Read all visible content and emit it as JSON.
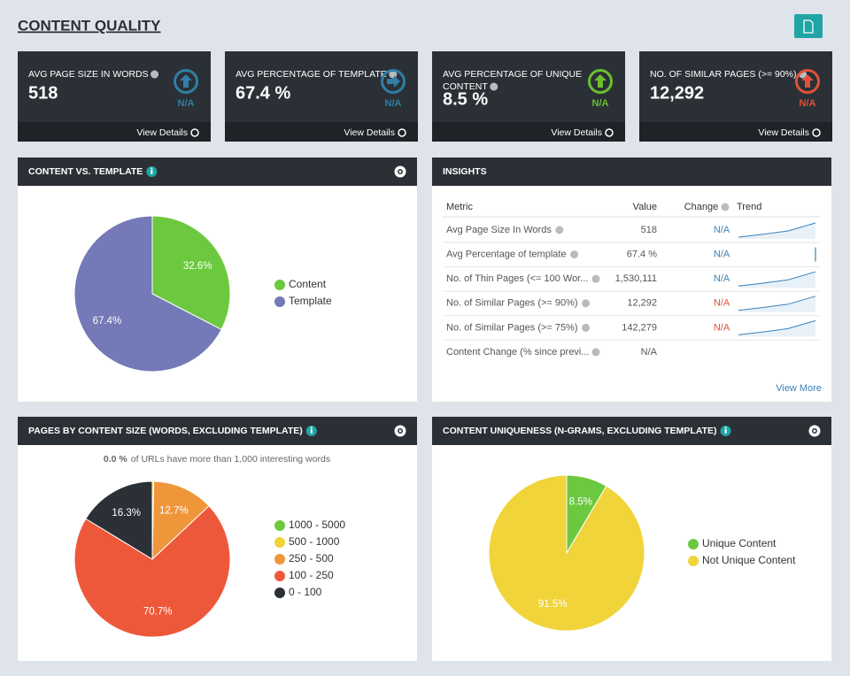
{
  "header": {
    "title": "CONTENT QUALITY"
  },
  "kpis": [
    {
      "label": [
        "AVG PAGE SIZE IN WORDS"
      ],
      "value": "518",
      "change": "N/A",
      "arrow": "up",
      "color": "#2f7fa6",
      "link": "View Details"
    },
    {
      "label": [
        "AVG PERCENTAGE OF TEMPLATE"
      ],
      "value": "67.4 %",
      "change": "N/A",
      "arrow": "right",
      "color": "#2f7fa6",
      "link": "View Details"
    },
    {
      "label": [
        "AVG PERCENTAGE OF UNIQUE",
        "CONTENT"
      ],
      "value": "8.5 %",
      "change": "N/A",
      "arrow": "up",
      "color": "#6cbf2f",
      "link": "View Details"
    },
    {
      "label": [
        "NO. OF SIMILAR PAGES (>= 90%)"
      ],
      "value": "12,292",
      "change": "N/A",
      "arrow": "up",
      "color": "#e0513a",
      "link": "View Details"
    }
  ],
  "chart_data": [
    {
      "type": "pie",
      "title": "CONTENT VS. TEMPLATE",
      "info": true,
      "categories": [
        "Content",
        "Template"
      ],
      "values": [
        32.6,
        67.4
      ],
      "value_labels": [
        "32.6%",
        "67.4%"
      ],
      "colors": [
        "#6cc93f",
        "#7479b8"
      ]
    },
    {
      "type": "pie",
      "title": "PAGES BY CONTENT SIZE (WORDS, EXCLUDING TEMPLATE)",
      "info": true,
      "subtitle": {
        "value": "0.0 %",
        "text": "of URLs have more than 1,000 interesting words"
      },
      "categories": [
        "1000 - 5000",
        "500 - 1000",
        "250 - 500",
        "100 - 250",
        "0 - 100"
      ],
      "values": [
        0,
        0.3,
        12.7,
        70.7,
        16.3
      ],
      "value_labels": [
        null,
        null,
        "12.7%",
        "70.7%",
        "16.3%"
      ],
      "colors": [
        "#6cc93f",
        "#f0d43a",
        "#f0963a",
        "#ee583a",
        "#2b3036"
      ]
    },
    {
      "type": "pie",
      "title": "CONTENT UNIQUENESS (N-GRAMS, EXCLUDING TEMPLATE)",
      "info": true,
      "categories": [
        "Unique Content",
        "Not Unique Content"
      ],
      "values": [
        8.5,
        91.5
      ],
      "value_labels": [
        "8.5%",
        "91.5%"
      ],
      "colors": [
        "#6cc93f",
        "#f0d43a"
      ]
    }
  ],
  "insights": {
    "title": "INSIGHTS",
    "columns": [
      "Metric",
      "Value",
      "Change",
      "Trend"
    ],
    "rows": [
      {
        "metric": "Avg Page Size In Words",
        "value": "518",
        "change": "N/A",
        "change_color": "#3b82b8",
        "trend": "rising"
      },
      {
        "metric": "Avg Percentage of template",
        "value": "67.4 %",
        "change": "N/A",
        "change_color": "#3b82b8",
        "trend": "vertical"
      },
      {
        "metric": "No. of Thin Pages (<= 100 Wor...",
        "value": "1,530,111",
        "change": "N/A",
        "change_color": "#3b82b8",
        "trend": "rising"
      },
      {
        "metric": "No. of Similar Pages (>= 90%)",
        "value": "12,292",
        "change": "N/A",
        "change_color": "#e0513a",
        "trend": "rising"
      },
      {
        "metric": "No. of Similar Pages (>= 75%)",
        "value": "142,279",
        "change": "N/A",
        "change_color": "#e0513a",
        "trend": "rising"
      },
      {
        "metric": "Content Change (% since previ...",
        "value": "N/A",
        "trend": null
      }
    ],
    "link": "View More"
  }
}
